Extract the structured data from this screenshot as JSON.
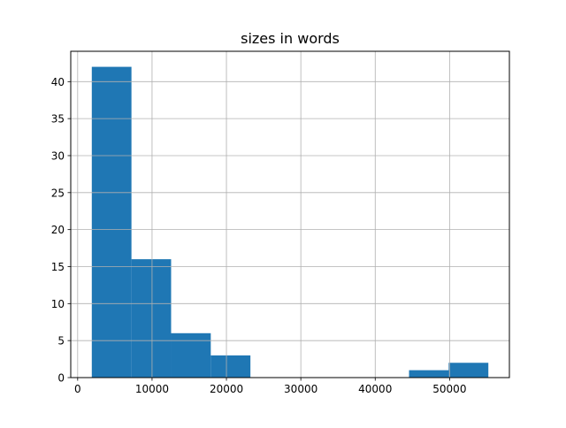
{
  "chart_data": {
    "type": "bar",
    "subtype": "histogram",
    "title": "sizes in words",
    "xlabel": "",
    "ylabel": "",
    "bin_edges": [
      1900,
      7231,
      12562,
      17893,
      23224,
      28555,
      33886,
      39217,
      44548,
      49879,
      55210
    ],
    "values": [
      42,
      16,
      6,
      3,
      0,
      0,
      0,
      0,
      1,
      2
    ],
    "xlim": [
      -930,
      58040
    ],
    "ylim": [
      0,
      44.1
    ],
    "xticks": [
      0,
      10000,
      20000,
      30000,
      40000,
      50000
    ],
    "yticks": [
      0,
      5,
      10,
      15,
      20,
      25,
      30,
      35,
      40
    ],
    "grid": true,
    "bar_color": "#1f77b4",
    "grid_color": "#b0b0b0"
  }
}
